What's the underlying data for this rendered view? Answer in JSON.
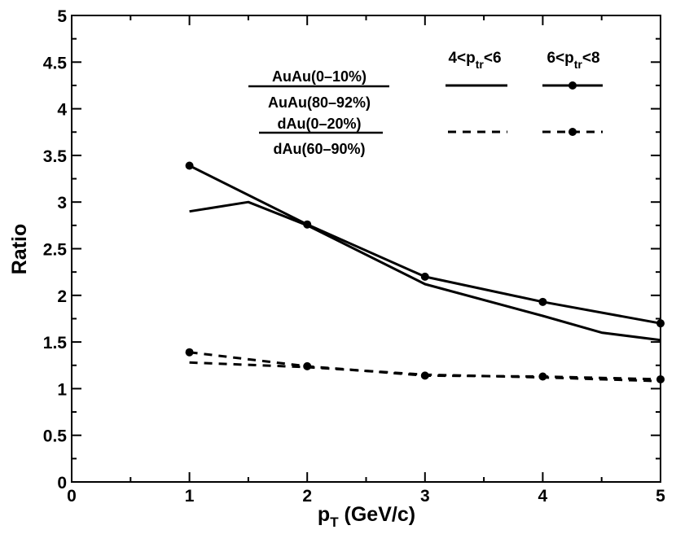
{
  "chart_data": {
    "type": "line",
    "xlabel": "p",
    "xlabel_sub": "T",
    "xlabel_rest": " (GeV/c)",
    "ylabel": "Ratio",
    "xlim": [
      0,
      5
    ],
    "ylim": [
      0,
      5
    ],
    "xticks": [
      0,
      1,
      2,
      3,
      4,
      5
    ],
    "yticks": [
      0,
      0.5,
      1,
      1.5,
      2,
      2.5,
      3,
      3.5,
      4,
      4.5,
      5
    ],
    "xtick_labels": [
      "0",
      "1",
      "2",
      "3",
      "4",
      "5"
    ],
    "ytick_labels": [
      "0",
      "0.5",
      "1",
      "1.5",
      "2",
      "2.5",
      "3",
      "3.5",
      "4",
      "4.5",
      "5"
    ],
    "legend": {
      "auau_numerator": "AuAu(0–10%)",
      "auau_denominator": "AuAu(80–92%)",
      "dau_numerator": "dAu(0–20%)",
      "dau_denominator": "dAu(60–90%)",
      "col1_pre": "4<p",
      "col1_sub": "tr",
      "col1_post": "<6",
      "col2_pre": "6<p",
      "col2_sub": "tr",
      "col2_post": "<8"
    },
    "series": [
      {
        "name": "AuAu 4<ptr<6",
        "style": "solid",
        "markers": false,
        "x": [
          1,
          1.5,
          2,
          3,
          4,
          4.5,
          5
        ],
        "y": [
          2.9,
          3.0,
          2.75,
          2.12,
          1.78,
          1.6,
          1.52
        ]
      },
      {
        "name": "AuAu 6<ptr<8",
        "style": "solid",
        "markers": true,
        "x": [
          1,
          2,
          3,
          4,
          5
        ],
        "y": [
          3.39,
          2.76,
          2.2,
          1.93,
          1.7
        ]
      },
      {
        "name": "dAu 4<ptr<6",
        "style": "dashed",
        "markers": false,
        "x": [
          1,
          2,
          3,
          4,
          5
        ],
        "y": [
          1.28,
          1.23,
          1.15,
          1.12,
          1.08
        ]
      },
      {
        "name": "dAu 6<ptr<8",
        "style": "dashed",
        "markers": true,
        "x": [
          1,
          2,
          3,
          4,
          5
        ],
        "y": [
          1.39,
          1.24,
          1.14,
          1.13,
          1.1
        ]
      }
    ]
  }
}
